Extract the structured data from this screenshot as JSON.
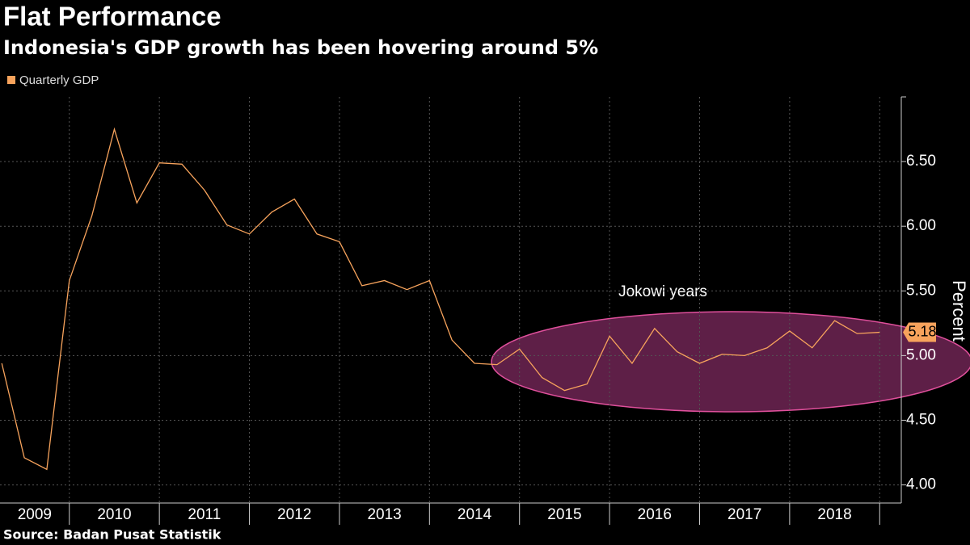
{
  "chart_data": {
    "type": "line",
    "title": "Flat Performance",
    "subtitle": "Indonesia's GDP growth has been hovering around 5%",
    "source": "Source: Badan Pusat Statistik",
    "y_axis_label": "Percent",
    "annotation": "Jokowi years",
    "x": [
      2009.25,
      2009.5,
      2009.75,
      2010,
      2010.25,
      2010.5,
      2010.75,
      2011,
      2011.25,
      2011.5,
      2011.75,
      2012,
      2012.25,
      2012.5,
      2012.75,
      2013,
      2013.25,
      2013.5,
      2013.75,
      2014,
      2014.25,
      2014.5,
      2014.75,
      2015,
      2015.25,
      2015.5,
      2015.75,
      2016,
      2016.25,
      2016.5,
      2016.75,
      2017,
      2017.25,
      2017.5,
      2017.75,
      2018,
      2018.25,
      2018.5,
      2018.75,
      2019
    ],
    "series": [
      {
        "name": "Quarterly GDP",
        "color": "#f7a35c",
        "values": [
          4.94,
          4.21,
          4.12,
          5.58,
          6.08,
          6.75,
          6.18,
          6.49,
          6.48,
          6.28,
          6.01,
          5.94,
          6.11,
          6.21,
          5.94,
          5.88,
          5.54,
          5.58,
          5.51,
          5.58,
          5.12,
          4.94,
          4.93,
          5.05,
          4.83,
          4.73,
          4.78,
          5.15,
          4.94,
          5.21,
          5.03,
          4.94,
          5.01,
          5.0,
          5.06,
          5.19,
          5.06,
          5.27,
          5.17,
          5.18
        ]
      }
    ],
    "xlim": [
      2009.23,
      2019.24
    ],
    "xticks": [
      2010,
      2011,
      2012,
      2013,
      2014,
      2015,
      2016,
      2017,
      2018,
      2019
    ],
    "year_labels": [
      "2009",
      "2010",
      "2011",
      "2012",
      "2013",
      "2014",
      "2015",
      "2016",
      "2017",
      "2018"
    ],
    "ylim": [
      3.86,
      7.0
    ],
    "yticks": [
      {
        "value": 4,
        "label": "4.00"
      },
      {
        "value": 4.5,
        "label": "4.50"
      },
      {
        "value": 5,
        "label": "5.00"
      },
      {
        "value": 5.5,
        "label": "5.50"
      },
      {
        "value": 6,
        "label": "6.00"
      },
      {
        "value": 6.5,
        "label": "6.50"
      }
    ],
    "grid": true
  }
}
